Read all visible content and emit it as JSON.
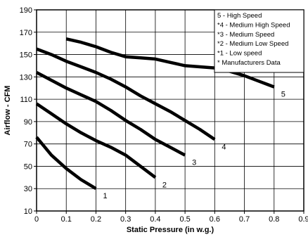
{
  "chart_data": {
    "type": "line",
    "title": "",
    "xlabel": "Static Pressure (in w.g.)",
    "ylabel": "Airflow - CFM",
    "xlim": [
      0,
      0.9
    ],
    "ylim": [
      10,
      190
    ],
    "xticks": [
      "0",
      "0.1",
      "0.2",
      "0.3",
      "0.4",
      "0.5",
      "0.6",
      "0.7",
      "0.8",
      "0.9"
    ],
    "yticks": [
      "10",
      "30",
      "50",
      "70",
      "90",
      "110",
      "130",
      "150",
      "170",
      "190"
    ],
    "grid": true,
    "legend_position": "top-right",
    "legend": [
      "5 - High Speed",
      "*4 - Medium High Speed",
      "*3 - Medium Speed",
      "*2 - Medium Low Speed",
      "*1 - Low speed",
      "* Manufacturers Data"
    ],
    "series": [
      {
        "name": "1",
        "x": [
          0,
          0.05,
          0.1,
          0.15,
          0.2
        ],
        "y": [
          76,
          60,
          48,
          38,
          30
        ]
      },
      {
        "name": "2",
        "x": [
          0,
          0.05,
          0.1,
          0.15,
          0.2,
          0.25,
          0.3,
          0.35,
          0.4
        ],
        "y": [
          106,
          97,
          88,
          80,
          73,
          67,
          60,
          50,
          40
        ]
      },
      {
        "name": "3",
        "x": [
          0,
          0.05,
          0.1,
          0.15,
          0.2,
          0.25,
          0.3,
          0.35,
          0.4,
          0.45,
          0.5
        ],
        "y": [
          134,
          127,
          120,
          114,
          108,
          100,
          91,
          83,
          74,
          67,
          60
        ]
      },
      {
        "name": "4",
        "x": [
          0,
          0.05,
          0.1,
          0.15,
          0.2,
          0.25,
          0.3,
          0.35,
          0.4,
          0.45,
          0.5,
          0.55,
          0.6
        ],
        "y": [
          155,
          150,
          144,
          139,
          134,
          128,
          121,
          113,
          106,
          99,
          91,
          83,
          74
        ]
      },
      {
        "name": "5",
        "x": [
          0.1,
          0.15,
          0.2,
          0.25,
          0.3,
          0.35,
          0.4,
          0.45,
          0.5,
          0.55,
          0.6,
          0.65,
          0.7,
          0.75,
          0.8
        ],
        "y": [
          164,
          161,
          157,
          152,
          148,
          147,
          146,
          143,
          140,
          139,
          138,
          135,
          131,
          126,
          121
        ]
      }
    ],
    "curve_labels": [
      "1",
      "2",
      "3",
      "4",
      "5"
    ]
  }
}
